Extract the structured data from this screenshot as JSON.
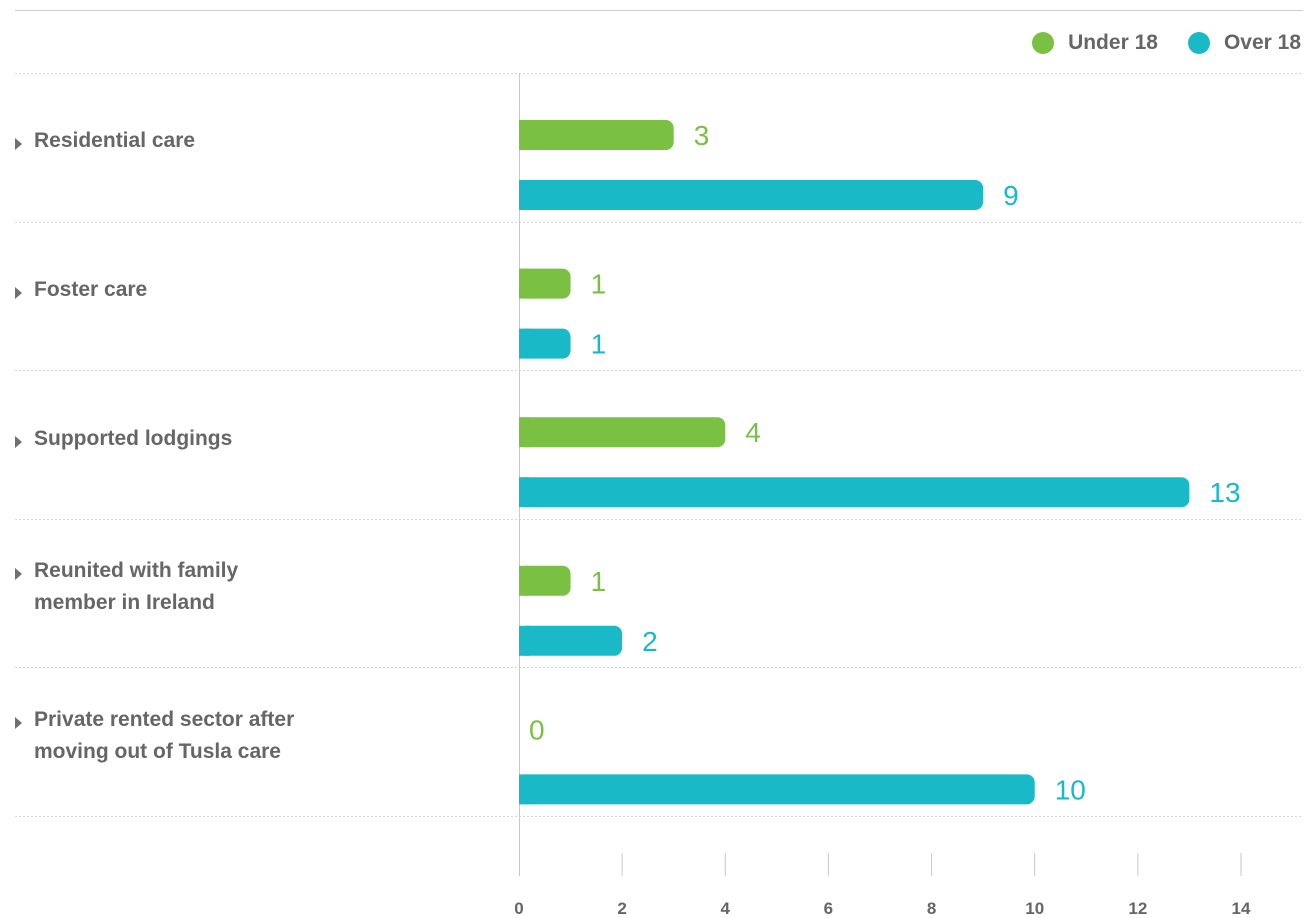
{
  "chart_data": {
    "type": "bar",
    "orientation": "horizontal",
    "categories": [
      "Residential care",
      "Foster care",
      "Supported lodgings",
      "Reunited with family\nmember in Ireland",
      "Private rented sector after\nmoving out of Tusla care"
    ],
    "series": [
      {
        "name": "Under 18",
        "color": "#7ac143",
        "values": [
          3,
          1,
          4,
          1,
          0
        ]
      },
      {
        "name": "Over 18",
        "color": "#1ab9c8",
        "values": [
          9,
          1,
          13,
          2,
          10
        ]
      }
    ],
    "xlim": [
      0,
      14
    ],
    "x_ticks": [
      0,
      2,
      4,
      6,
      8,
      10,
      12,
      14
    ],
    "legend_position": "top-right",
    "data_labels": true,
    "grid": false
  }
}
